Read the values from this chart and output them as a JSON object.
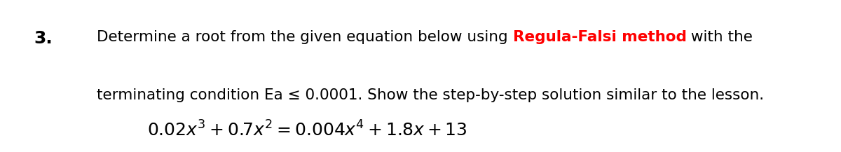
{
  "background_color": "#ffffff",
  "number_text": "3.",
  "number_fontsize": 18,
  "line_fontsize": 15.5,
  "eq_fontsize": 18,
  "line1_prefix": "Determine a root from the given equation below using ",
  "line1_highlight": "Regula-Falsi method",
  "line1_suffix": " with the",
  "highlight_color": "#ff0000",
  "line2_text": "terminating condition Ea ≤ 0.0001. Show the step-by-step solution similar to the lesson.",
  "eq_mathtext": "$\\mathregular{0.02x^3 + 0.7x^2 = 0.004x^4 + 1.8x + 13}$"
}
